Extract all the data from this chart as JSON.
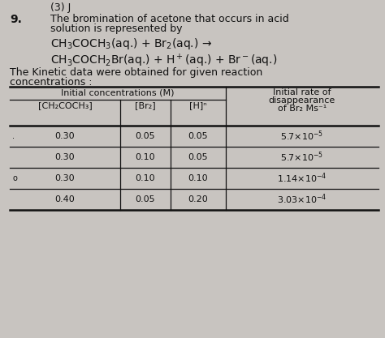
{
  "bg_color": "#c8c4c0",
  "content_bg": "#e8e4e0",
  "title_number": "9.",
  "top_text": "(3) J",
  "intro_text_line1": "The bromination of acetone that occurs in acid",
  "intro_text_line2": "solution is represented by",
  "equation1": "CH$_3$COCH$_3$(aq.) + Br$_2$(aq.) →",
  "equation2": "CH$_3$COCH$_2$Br(aq.) + H$^+$(aq.) + Br$^-$(aq.)",
  "kinetic_text_line1": "The Kinetic data were obtained for given reaction",
  "kinetic_text_line2": "concentrations :",
  "col_header1": "Initial concentrations (M)",
  "col_header2_line1": "Initial rate of",
  "col_header2_line2": "disappearance",
  "col_header2_line3": "of Br₂ Ms⁻¹",
  "sub_col1": "[CH₂COCH₃]",
  "sub_col2": "[Br₂]",
  "sub_col3": "[H]ⁿ",
  "data_rows": [
    [
      "0.30",
      "0.05",
      "0.05",
      "5.7×10",
      "5"
    ],
    [
      "0.30",
      "0.10",
      "0.05",
      "5.7×10",
      "5"
    ],
    [
      "0.30",
      "0.10",
      "0.10",
      "1.14×10",
      "4"
    ],
    [
      "0.40",
      "0.05",
      "0.20",
      "3.03×10",
      "4"
    ]
  ],
  "row_prefix": [
    ".",
    "",
    "o",
    ""
  ],
  "font_size_small": 8,
  "font_size_text": 9,
  "font_size_eq": 10,
  "font_size_table": 8,
  "text_color": "#111111"
}
